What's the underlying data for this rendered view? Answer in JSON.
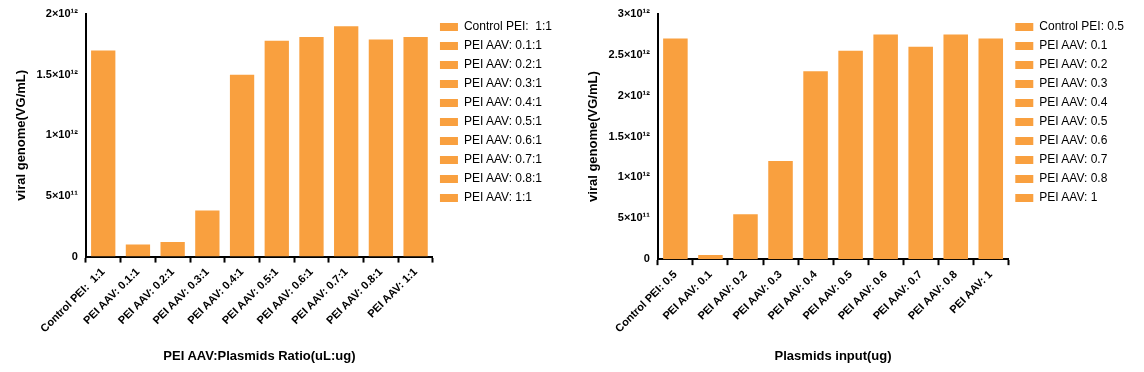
{
  "chart_data": [
    {
      "type": "bar",
      "xlabel": "PEI AAV:Plasmids Ratio(uL:ug)",
      "ylabel": "viral genome(VG/mL)",
      "stacked": true,
      "categories": [
        "Control PEI:  1:1",
        "PEI AAV: 0.1:1",
        "PEI AAV: 0.2:1",
        "PEI AAV: 0.3:1",
        "PEI AAV: 0.4:1",
        "PEI AAV: 0.5:1",
        "PEI AAV: 0.6:1",
        "PEI AAV: 0.7:1",
        "PEI AAV: 0.8:1",
        "PEI AAV: 1:1"
      ],
      "series": [
        {
          "name": "Control PEI:  1:1",
          "color": "#f9a03f",
          "values": [
            1700000000000.0,
            null,
            null,
            null,
            null,
            null,
            null,
            null,
            null,
            null
          ]
        },
        {
          "name": "PEI AAV: 0.1:1",
          "color": "#f9a03f",
          "values": [
            null,
            100000000000.0,
            null,
            null,
            null,
            null,
            null,
            null,
            null,
            null
          ]
        },
        {
          "name": "PEI AAV: 0.2:1",
          "color": "#f9a03f",
          "values": [
            null,
            null,
            120000000000.0,
            null,
            null,
            null,
            null,
            null,
            null,
            null
          ]
        },
        {
          "name": "PEI AAV: 0.3:1",
          "color": "#f9a03f",
          "values": [
            null,
            null,
            null,
            380000000000.0,
            null,
            null,
            null,
            null,
            null,
            null
          ]
        },
        {
          "name": "PEI AAV: 0.4:1",
          "color": "#f9a03f",
          "values": [
            null,
            null,
            null,
            null,
            1500000000000.0,
            null,
            null,
            null,
            null,
            null
          ]
        },
        {
          "name": "PEI AAV: 0.5:1",
          "color": "#f9a03f",
          "values": [
            null,
            null,
            null,
            null,
            null,
            1780000000000.0,
            null,
            null,
            null,
            null
          ]
        },
        {
          "name": "PEI AAV: 0.6:1",
          "color": "#f9a03f",
          "values": [
            null,
            null,
            null,
            null,
            null,
            null,
            1810000000000.0,
            null,
            null,
            null
          ]
        },
        {
          "name": "PEI AAV: 0.7:1",
          "color": "#f9a03f",
          "values": [
            null,
            null,
            null,
            null,
            null,
            null,
            null,
            1900000000000.0,
            null,
            null
          ]
        },
        {
          "name": "PEI AAV: 0.8:1",
          "color": "#f9a03f",
          "values": [
            null,
            null,
            null,
            null,
            null,
            null,
            null,
            null,
            1790000000000.0,
            null
          ]
        },
        {
          "name": "PEI AAV: 1:1",
          "color": "#f9a03f",
          "values": [
            null,
            null,
            null,
            null,
            null,
            null,
            null,
            null,
            null,
            1810000000000.0
          ]
        }
      ],
      "ylim": [
        0,
        2000000000000.0
      ],
      "yticks": [
        0,
        {
          "value": 500000000000.0,
          "label": "5×10¹¹"
        },
        {
          "value": 1000000000000.0,
          "label": "1×10¹²"
        },
        {
          "value": 1500000000000.0,
          "label": "1.5×10¹²"
        },
        {
          "value": 2000000000000.0,
          "label": "2×10¹²"
        }
      ],
      "grid": false,
      "legend": "right"
    },
    {
      "type": "bar",
      "xlabel": "Plasmids input(ug)",
      "ylabel": "viral genome(VG/mL)",
      "stacked": true,
      "categories": [
        "Control PEI: 0.5",
        "PEI AAV: 0.1",
        "PEI AAV: 0.2",
        "PEI AAV: 0.3",
        "PEI AAV: 0.4",
        "PEI AAV: 0.5",
        "PEI AAV: 0.6",
        "PEI AAV: 0.7",
        "PEI AAV: 0.8",
        "PEI AAV: 1"
      ],
      "series": [
        {
          "name": "Control PEI: 0.5",
          "color": "#f9a03f",
          "values": [
            2700000000000.0,
            null,
            null,
            null,
            null,
            null,
            null,
            null,
            null,
            null
          ]
        },
        {
          "name": "PEI AAV: 0.1",
          "color": "#f9a03f",
          "values": [
            null,
            50000000000.0,
            null,
            null,
            null,
            null,
            null,
            null,
            null,
            null
          ]
        },
        {
          "name": "PEI AAV: 0.2",
          "color": "#f9a03f",
          "values": [
            null,
            null,
            550000000000.0,
            null,
            null,
            null,
            null,
            null,
            null,
            null
          ]
        },
        {
          "name": "PEI AAV: 0.3",
          "color": "#f9a03f",
          "values": [
            null,
            null,
            null,
            1200000000000.0,
            null,
            null,
            null,
            null,
            null,
            null
          ]
        },
        {
          "name": "PEI AAV: 0.4",
          "color": "#f9a03f",
          "values": [
            null,
            null,
            null,
            null,
            2300000000000.0,
            null,
            null,
            null,
            null,
            null
          ]
        },
        {
          "name": "PEI AAV: 0.5",
          "color": "#f9a03f",
          "values": [
            null,
            null,
            null,
            null,
            null,
            2550000000000.0,
            null,
            null,
            null,
            null
          ]
        },
        {
          "name": "PEI AAV: 0.6",
          "color": "#f9a03f",
          "values": [
            null,
            null,
            null,
            null,
            null,
            null,
            2750000000000.0,
            null,
            null,
            null
          ]
        },
        {
          "name": "PEI AAV: 0.7",
          "color": "#f9a03f",
          "values": [
            null,
            null,
            null,
            null,
            null,
            null,
            null,
            2600000000000.0,
            null,
            null
          ]
        },
        {
          "name": "PEI AAV: 0.8",
          "color": "#f9a03f",
          "values": [
            null,
            null,
            null,
            null,
            null,
            null,
            null,
            null,
            2750000000000.0,
            null
          ]
        },
        {
          "name": "PEI AAV: 1",
          "color": "#f9a03f",
          "values": [
            null,
            null,
            null,
            null,
            null,
            null,
            null,
            null,
            null,
            2700000000000.0
          ]
        }
      ],
      "ylim": [
        0,
        3000000000000.0
      ],
      "yticks": [
        0,
        {
          "value": 500000000000.0,
          "label": "5×10¹¹"
        },
        {
          "value": 1000000000000.0,
          "label": "1×10¹²"
        },
        {
          "value": 1500000000000.0,
          "label": "1.5×10¹²"
        },
        {
          "value": 2000000000000.0,
          "label": "2×10¹²"
        },
        {
          "value": 2500000000000.0,
          "label": "2.5×10¹²"
        },
        {
          "value": 3000000000000.0,
          "label": "3×10¹²"
        }
      ],
      "grid": false,
      "legend": "right"
    }
  ]
}
